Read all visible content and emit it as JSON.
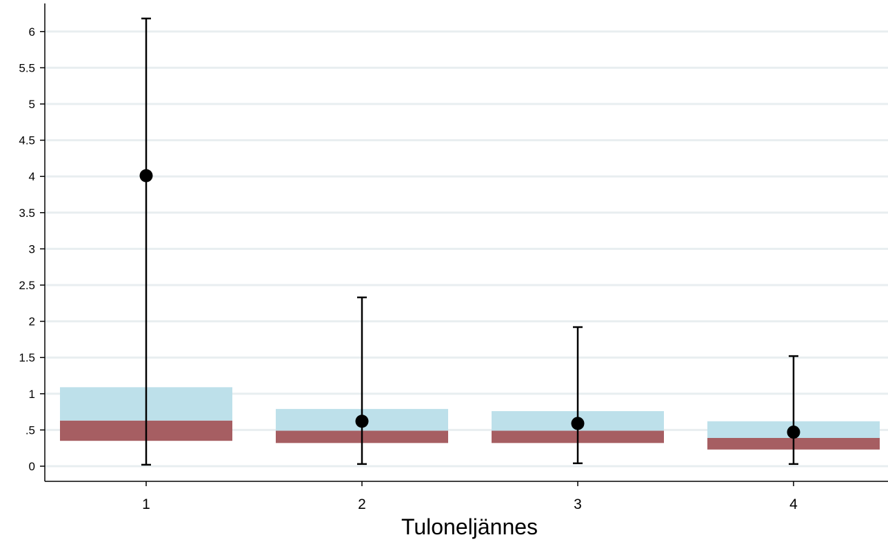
{
  "chart_data": {
    "type": "box",
    "title": "",
    "xlabel": "Tuloneljännes",
    "ylabel": "",
    "categories": [
      "1",
      "2",
      "3",
      "4"
    ],
    "ylim": [
      -0.2,
      6.4
    ],
    "yticks": [
      0,
      0.5,
      1,
      1.5,
      2,
      2.5,
      3,
      3.5,
      4,
      4.5,
      5,
      5.5,
      6
    ],
    "ytick_labels": [
      "0",
      ".5",
      "1",
      "1.5",
      "2",
      "2.5",
      "3",
      "3.5",
      "4",
      "4.5",
      "5",
      "5.5",
      "6"
    ],
    "grid": "horizontal",
    "boxes": [
      {
        "category": "1",
        "whisker_low": 0.02,
        "q1": 0.35,
        "median": 0.63,
        "q3": 1.09,
        "whisker_high": 6.18,
        "mean": 4.01
      },
      {
        "category": "2",
        "whisker_low": 0.03,
        "q1": 0.32,
        "median": 0.49,
        "q3": 0.79,
        "whisker_high": 2.33,
        "mean": 0.62
      },
      {
        "category": "3",
        "whisker_low": 0.04,
        "q1": 0.32,
        "median": 0.49,
        "q3": 0.76,
        "whisker_high": 1.92,
        "mean": 0.59
      },
      {
        "category": "4",
        "whisker_low": 0.03,
        "q1": 0.23,
        "median": 0.39,
        "q3": 0.62,
        "whisker_high": 1.52,
        "mean": 0.47
      }
    ],
    "colors": {
      "lower_box": "#a65e62",
      "upper_box": "#bde0ea",
      "whisker": "#000000",
      "mean_marker": "#000000",
      "grid": "#e8eef0",
      "axis": "#000000"
    }
  }
}
